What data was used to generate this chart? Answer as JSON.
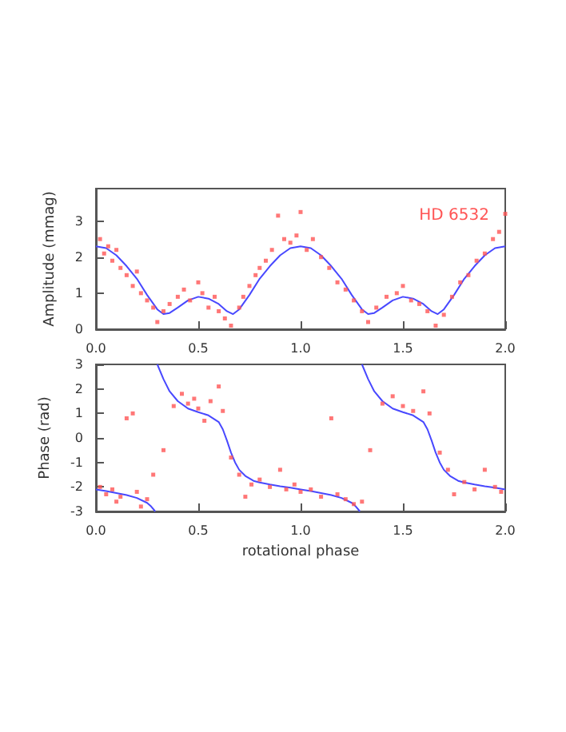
{
  "chart_data": [
    {
      "type": "line",
      "ylabel": "Amplitude (mmag)",
      "annotations": [
        "HD 6532"
      ],
      "xlim": [
        0,
        2
      ],
      "xticks": [
        {
          "value": 0,
          "label": "0.0"
        },
        {
          "value": 0.5,
          "label": "0.5"
        },
        {
          "value": 1,
          "label": "1.0"
        },
        {
          "value": 1.5,
          "label": "1.5"
        },
        {
          "value": 2,
          "label": "2.0"
        }
      ],
      "ylim": [
        0,
        3.9
      ],
      "yticks": [
        0,
        1,
        2,
        3
      ],
      "grid": false,
      "series": [
        {
          "type": "scatter",
          "marker": "square",
          "color": "#ff5555",
          "x": [
            0.02,
            0.04,
            0.06,
            0.08,
            0.1,
            0.12,
            0.15,
            0.18,
            0.2,
            0.22,
            0.25,
            0.28,
            0.3,
            0.33,
            0.36,
            0.4,
            0.43,
            0.46,
            0.5,
            0.52,
            0.55,
            0.58,
            0.6,
            0.63,
            0.66,
            0.7,
            0.72,
            0.75,
            0.78,
            0.8,
            0.83,
            0.86,
            0.89,
            0.92,
            0.95,
            0.98,
            1.0,
            1.03,
            1.06,
            1.1,
            1.14,
            1.18,
            1.22,
            1.26,
            1.3,
            1.33,
            1.37,
            1.42,
            1.47,
            1.5,
            1.54,
            1.58,
            1.62,
            1.66,
            1.7,
            1.74,
            1.78,
            1.82,
            1.86,
            1.9,
            1.94,
            1.97,
            2.0
          ],
          "values": [
            2.5,
            2.1,
            2.3,
            1.9,
            2.2,
            1.7,
            1.5,
            1.2,
            1.6,
            1.0,
            0.8,
            0.6,
            0.2,
            0.5,
            0.7,
            0.9,
            1.1,
            0.8,
            1.3,
            1.0,
            0.6,
            0.9,
            0.5,
            0.3,
            0.1,
            0.6,
            0.9,
            1.2,
            1.5,
            1.7,
            1.9,
            2.2,
            3.15,
            2.5,
            2.4,
            2.6,
            3.25,
            2.2,
            2.5,
            2.0,
            1.7,
            1.3,
            1.1,
            0.8,
            0.5,
            0.2,
            0.6,
            0.9,
            1.0,
            1.2,
            0.8,
            0.7,
            0.5,
            0.1,
            0.4,
            0.9,
            1.3,
            1.5,
            1.9,
            2.1,
            2.5,
            2.7,
            3.2
          ]
        },
        {
          "type": "line",
          "marker": "none",
          "line_style": "solid",
          "color": "#4848ff",
          "x": [
            0,
            0.05,
            0.1,
            0.15,
            0.2,
            0.25,
            0.3,
            0.33,
            0.36,
            0.4,
            0.45,
            0.5,
            0.55,
            0.6,
            0.64,
            0.67,
            0.7,
            0.75,
            0.8,
            0.85,
            0.9,
            0.95,
            1.0,
            1.05,
            1.1,
            1.15,
            1.2,
            1.25,
            1.3,
            1.33,
            1.36,
            1.4,
            1.45,
            1.5,
            1.55,
            1.6,
            1.64,
            1.67,
            1.7,
            1.75,
            1.8,
            1.85,
            1.9,
            1.95,
            2.0
          ],
          "values": [
            2.3,
            2.25,
            2.05,
            1.75,
            1.4,
            0.95,
            0.55,
            0.42,
            0.45,
            0.6,
            0.8,
            0.9,
            0.85,
            0.7,
            0.5,
            0.42,
            0.55,
            0.95,
            1.4,
            1.75,
            2.05,
            2.25,
            2.3,
            2.25,
            2.05,
            1.75,
            1.4,
            0.95,
            0.55,
            0.42,
            0.45,
            0.6,
            0.8,
            0.9,
            0.85,
            0.7,
            0.5,
            0.42,
            0.55,
            0.95,
            1.4,
            1.75,
            2.05,
            2.25,
            2.3
          ]
        }
      ]
    },
    {
      "type": "line",
      "xlabel": "rotational phase",
      "ylabel": "Phase (rad)",
      "xlim": [
        0,
        2
      ],
      "xticks": [
        {
          "value": 0,
          "label": "0.0"
        },
        {
          "value": 0.5,
          "label": "0.5"
        },
        {
          "value": 1,
          "label": "1.0"
        },
        {
          "value": 1.5,
          "label": "1.5"
        },
        {
          "value": 2,
          "label": "2.0"
        }
      ],
      "ylim": [
        -3,
        3
      ],
      "yticks": [
        -3,
        -2,
        -1,
        0,
        1,
        2,
        3
      ],
      "grid": false,
      "series": [
        {
          "type": "scatter",
          "marker": "square",
          "color": "#ff5555",
          "x": [
            0.02,
            0.05,
            0.08,
            0.1,
            0.12,
            0.15,
            0.18,
            0.2,
            0.22,
            0.25,
            0.28,
            0.33,
            0.38,
            0.42,
            0.45,
            0.48,
            0.5,
            0.53,
            0.56,
            0.6,
            0.62,
            0.66,
            0.7,
            0.73,
            0.76,
            0.8,
            0.85,
            0.9,
            0.93,
            0.97,
            1.0,
            1.05,
            1.1,
            1.15,
            1.18,
            1.22,
            1.26,
            1.3,
            1.34,
            1.4,
            1.45,
            1.5,
            1.55,
            1.6,
            1.63,
            1.68,
            1.72,
            1.75,
            1.8,
            1.85,
            1.9,
            1.95,
            1.98
          ],
          "values": [
            -2.0,
            -2.3,
            -2.1,
            -2.6,
            -2.4,
            0.8,
            1.0,
            -2.2,
            -2.8,
            -2.5,
            -1.5,
            -0.5,
            1.3,
            1.8,
            1.4,
            1.6,
            1.2,
            0.7,
            1.5,
            2.1,
            1.1,
            -0.8,
            -1.5,
            -2.4,
            -1.9,
            -1.7,
            -2.0,
            -1.3,
            -2.1,
            -1.9,
            -2.2,
            -2.1,
            -2.4,
            0.8,
            -2.3,
            -2.5,
            -2.7,
            -2.6,
            -0.5,
            1.4,
            1.7,
            1.3,
            1.1,
            1.9,
            1.0,
            -0.6,
            -1.3,
            -2.3,
            -1.8,
            -2.1,
            -1.3,
            -2.0,
            -2.2
          ]
        },
        {
          "type": "line",
          "marker": "none",
          "line_style": "solid",
          "color": "#4848ff",
          "x": [
            0,
            0.05,
            0.1,
            0.15,
            0.2,
            0.25,
            0.27,
            0.29,
            0.295,
            0.3,
            0.33,
            0.36,
            0.4,
            0.45,
            0.5,
            0.55,
            0.6,
            0.62,
            0.64,
            0.66,
            0.68,
            0.7,
            0.73,
            0.77,
            0.8,
            0.85,
            0.9,
            0.95,
            1.0,
            1.05,
            1.1,
            1.15,
            1.2,
            1.25,
            1.27,
            1.29,
            1.295,
            1.3,
            1.33,
            1.36,
            1.4,
            1.45,
            1.5,
            1.55,
            1.6,
            1.62,
            1.64,
            1.66,
            1.68,
            1.7,
            1.73,
            1.77,
            1.8,
            1.85,
            1.9,
            1.95,
            2.0
          ],
          "values": [
            -2.1,
            -2.17,
            -2.25,
            -2.33,
            -2.45,
            -2.65,
            -2.8,
            -3,
            null,
            3,
            2.4,
            1.9,
            1.5,
            1.2,
            1.05,
            0.92,
            0.65,
            0.35,
            -0.1,
            -0.6,
            -1.0,
            -1.3,
            -1.55,
            -1.75,
            -1.82,
            -1.9,
            -1.97,
            -2.03,
            -2.1,
            -2.17,
            -2.25,
            -2.33,
            -2.45,
            -2.65,
            -2.8,
            -3,
            null,
            3,
            2.4,
            1.9,
            1.5,
            1.2,
            1.05,
            0.92,
            0.65,
            0.35,
            -0.1,
            -0.6,
            -1.0,
            -1.3,
            -1.55,
            -1.75,
            -1.82,
            -1.9,
            -1.97,
            -2.03,
            -2.1
          ]
        }
      ]
    }
  ]
}
